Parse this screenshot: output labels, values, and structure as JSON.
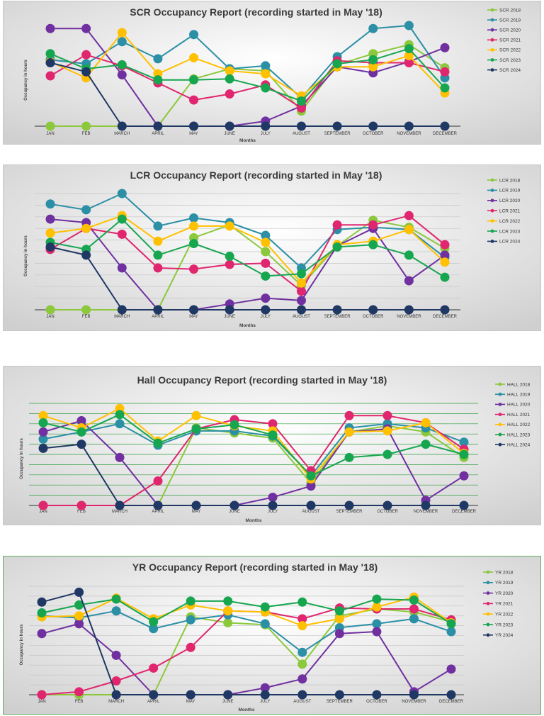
{
  "colors": {
    "2018": "#8cc83c",
    "2019": "#2b8fa6",
    "2020": "#7030a0",
    "2021": "#e0266e",
    "2022": "#ffc000",
    "2023": "#17a650",
    "2024": "#203864",
    "hall_grid": "#2e9e3e"
  },
  "chart_data": [
    {
      "id": "scr",
      "type": "line",
      "title": "SCR  Occupancy Report (recording started in May '18)",
      "xlabel": "Months",
      "ylabel": "Occupancy in hours",
      "categories": [
        "JAN",
        "FEB",
        "MARCH",
        "APRIL",
        "MAY",
        "JUNE",
        "JULY",
        "AUGUST",
        "SEPTEMBER",
        "OCTOBER",
        "NOVEMBER",
        "DECEMBER"
      ],
      "grid": false,
      "legend": "right",
      "series": [
        {
          "name": "SCR 2018",
          "year": "2018",
          "values": [
            0,
            0,
            0,
            0,
            47,
            57,
            55,
            15,
            61,
            72,
            81,
            58
          ]
        },
        {
          "name": "SCR 2019",
          "year": "2019",
          "values": [
            66,
            62,
            84,
            67,
            91,
            57,
            60,
            28,
            69,
            97,
            100,
            48
          ]
        },
        {
          "name": "SCR 2020",
          "year": "2020",
          "values": [
            97,
            97,
            51,
            0,
            0,
            0,
            5,
            20,
            59,
            53,
            64,
            78
          ]
        },
        {
          "name": "SCR 2021",
          "year": "2021",
          "values": [
            50,
            71,
            60,
            43,
            26,
            32,
            41,
            18,
            65,
            63,
            63,
            54
          ]
        },
        {
          "name": "SCR 2022",
          "year": "2022",
          "values": [
            64,
            48,
            93,
            52,
            68,
            55,
            52,
            30,
            59,
            59,
            70,
            33
          ]
        },
        {
          "name": "SCR 2023",
          "year": "2023",
          "values": [
            72,
            57,
            61,
            46,
            46,
            47,
            38,
            25,
            62,
            66,
            77,
            38
          ]
        },
        {
          "name": "SCR 2024",
          "year": "2024",
          "values": [
            63,
            54,
            0,
            0,
            0,
            0,
            0,
            0,
            0,
            0,
            0,
            0
          ]
        }
      ]
    },
    {
      "id": "lcr",
      "type": "line",
      "title": "LCR  Occupancy Report (recording started in May '18)",
      "xlabel": "Months",
      "ylabel": "Occupancy in hours",
      "categories": [
        "JAN",
        "FEB",
        "MARCH",
        "APRIL",
        "MAY",
        "JUNE",
        "JULY",
        "AUGUST",
        "SEPTEMBER",
        "OCTOBER",
        "NOVEMBER",
        "DECEMBER"
      ],
      "grid": true,
      "legend": "right",
      "series": [
        {
          "name": "LCR 2018",
          "year": "2018",
          "values": [
            0,
            0,
            0,
            0,
            62,
            73,
            50,
            21,
            55,
            77,
            71,
            53
          ]
        },
        {
          "name": "LCR 2019",
          "year": "2019",
          "values": [
            91,
            86,
            100,
            72,
            79,
            75,
            64,
            36,
            69,
            71,
            69,
            45
          ]
        },
        {
          "name": "LCR 2020",
          "year": "2020",
          "values": [
            78,
            75,
            36,
            0,
            0,
            5,
            10,
            8,
            55,
            70,
            25,
            47
          ]
        },
        {
          "name": "LCR 2021",
          "year": "2021",
          "values": [
            52,
            70,
            65,
            36,
            35,
            39,
            40,
            16,
            73,
            73,
            81,
            56
          ]
        },
        {
          "name": "LCR 2022",
          "year": "2022",
          "values": [
            66,
            70,
            81,
            59,
            72,
            72,
            58,
            23,
            56,
            59,
            69,
            41
          ]
        },
        {
          "name": "LCR 2023",
          "year": "2023",
          "values": [
            58,
            52,
            78,
            47,
            57,
            46,
            29,
            31,
            54,
            56,
            47,
            28
          ]
        },
        {
          "name": "LCR 2024",
          "year": "2024",
          "values": [
            54,
            47,
            0,
            0,
            0,
            0,
            0,
            0,
            0,
            0,
            0,
            0
          ]
        }
      ]
    },
    {
      "id": "hall",
      "type": "line",
      "title": "Hall  Occupancy Report (recording started in May '18)",
      "xlabel": "Months",
      "ylabel": "Occupancy in hours",
      "categories": [
        "JAN",
        "FEB",
        "MARCH",
        "APRIL",
        "MAY",
        "JUNE",
        "JULY",
        "AUGUST",
        "SEPTEMBER",
        "OCTOBER",
        "NOVEMBER",
        "DECEMBER"
      ],
      "grid": true,
      "legend": "right",
      "series": [
        {
          "name": "HALL 2018",
          "year": "2018",
          "values": [
            0,
            0,
            0,
            0,
            76,
            71,
            66,
            22,
            72,
            78,
            72,
            47
          ]
        },
        {
          "name": "HALL 2019",
          "year": "2019",
          "values": [
            65,
            72,
            80,
            59,
            73,
            73,
            68,
            29,
            76,
            80,
            76,
            62
          ]
        },
        {
          "name": "HALL 2020",
          "year": "2020",
          "values": [
            72,
            83,
            47,
            0,
            0,
            0,
            8,
            19,
            72,
            75,
            5,
            29
          ]
        },
        {
          "name": "HALL 2021",
          "year": "2021",
          "values": [
            0,
            0,
            0,
            24,
            75,
            84,
            80,
            34,
            88,
            88,
            81,
            55
          ]
        },
        {
          "name": "HALL 2022",
          "year": "2022",
          "values": [
            88,
            76,
            95,
            63,
            88,
            78,
            73,
            26,
            72,
            73,
            81,
            51
          ]
        },
        {
          "name": "HALL 2023",
          "year": "2023",
          "values": [
            81,
            72,
            89,
            61,
            75,
            79,
            69,
            29,
            47,
            50,
            60,
            50
          ]
        },
        {
          "name": "HALL 2024",
          "year": "2024",
          "values": [
            56,
            60,
            0,
            0,
            0,
            0,
            0,
            0,
            0,
            0,
            0,
            0
          ]
        }
      ]
    },
    {
      "id": "yr",
      "type": "line",
      "title": "YR  Occupancy Report (recording started in May '18)",
      "xlabel": "Months",
      "ylabel": "Occupancy in hours",
      "categories": [
        "JAN",
        "FEB",
        "MARCH",
        "APRIL",
        "MAY",
        "JUNE",
        "JULY",
        "AUGUST",
        "SEPTEMBER",
        "OCTOBER",
        "NOVEMBER",
        "DECEMBER"
      ],
      "grid": true,
      "legend": "right",
      "series": [
        {
          "name": "YR 2018",
          "year": "2018",
          "values": [
            0,
            0,
            0,
            0,
            79,
            73,
            71,
            31,
            80,
            87,
            84,
            74
          ]
        },
        {
          "name": "YR 2019",
          "year": "2019",
          "values": [
            80,
            78,
            85,
            67,
            76,
            81,
            72,
            43,
            68,
            72,
            77,
            64
          ]
        },
        {
          "name": "YR 2020",
          "year": "2020",
          "values": [
            62,
            72,
            40,
            0,
            0,
            0,
            7,
            16,
            62,
            64,
            3,
            26
          ]
        },
        {
          "name": "YR 2021",
          "year": "2021",
          "values": [
            0,
            3,
            14,
            27,
            48,
            85,
            84,
            77,
            88,
            87,
            87,
            76
          ]
        },
        {
          "name": "YR 2022",
          "year": "2022",
          "values": [
            79,
            80,
            98,
            77,
            91,
            85,
            84,
            70,
            77,
            89,
            99,
            73
          ]
        },
        {
          "name": "YR 2023",
          "year": "2023",
          "values": [
            83,
            91,
            97,
            74,
            95,
            95,
            89,
            94,
            85,
            97,
            96,
            72
          ]
        },
        {
          "name": "YR 2024",
          "year": "2024",
          "values": [
            94,
            104,
            0,
            0,
            0,
            0,
            0,
            0,
            0,
            0,
            0,
            0
          ]
        }
      ]
    }
  ]
}
